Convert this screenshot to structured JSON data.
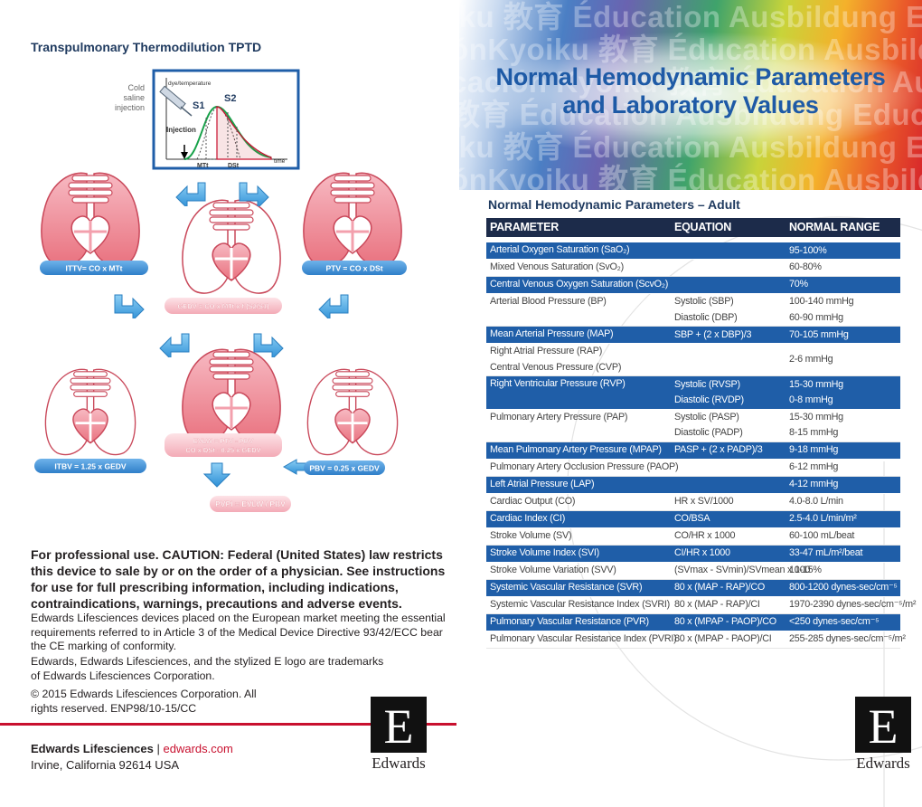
{
  "left": {
    "title": "Transpulmonary Thermodilution TPTD",
    "diagram": {
      "injection_label": [
        "Cold",
        "saline",
        "injection"
      ],
      "y_label": "dye/temperature",
      "s1": "S1",
      "s2": "S2",
      "injection": "Injection",
      "mtt": "MTt",
      "dst": "DSt",
      "time": "time"
    },
    "formulas": {
      "ittv": "ITTV= CO x MTt",
      "ptv": "PTV = CO x DSt",
      "gedv": "GEDV = CO x MTt x f (S2/S1)",
      "evlw": [
        "EVLW = PTV - PBV",
        "CO x DSt - 0.25 x GEDV"
      ],
      "itbv": "ITBV = 1.25 x GEDV",
      "pbv": "PBV = 0.25 x GEDV",
      "pvpi": "PVPI = EVLW / PBV"
    },
    "caution": "For professional use. CAUTION: Federal (United States) law restricts this device to sale by or on the order of a physician. See instructions for use for full prescribing information, including indications, contraindications, warnings, precautions and adverse events.",
    "paragraphs": [
      "Edwards Lifesciences devices placed on the European market meeting the essential requirements referred to in Article 3 of the Medical Device Directive 93/42/ECC bear the CE marking of conformity.",
      "Edwards, Edwards Lifesciences, and the stylized E logo are trademarks of Edwards Lifesciences Corporation.",
      "© 2015 Edwards Lifesciences Corporation. All rights reserved. ENP98/10-15/CC"
    ],
    "footer": {
      "company": "Edwards Lifesciences",
      "separator": "|",
      "url": "edwards.com",
      "address": "Irvine, California 92614 USA"
    },
    "logo": "Edwards"
  },
  "right": {
    "header": {
      "watermark": [
        "iku 教育 Éducation Ausbildung Educació",
        "ónKyoiku 教育 Éducation Ausbildung E",
        "cación Kyoiku 教育 Éducation Ausbildu",
        "教育 Éducation Ausbildung Educación K",
        "iku 教育 Éducation Ausbildung Educació",
        "ónKyoiku 教育 Éducation Ausbildung E"
      ],
      "title": [
        "Normal Hemodynamic Parameters",
        "and Laboratory Values"
      ]
    },
    "table": {
      "title": "Normal Hemodynamic Parameters – Adult",
      "columns": [
        "PARAMETER",
        "EQUATION",
        "NORMAL RANGE"
      ],
      "rows": [
        {
          "blue": true,
          "parameter": [
            "Arterial Oxygen Saturation (SaO₂)"
          ],
          "equation": [],
          "range": [
            "95-100%"
          ]
        },
        {
          "blue": false,
          "parameter": [
            "Mixed Venous Saturation (SvO₂)"
          ],
          "equation": [],
          "range": [
            "60-80%"
          ]
        },
        {
          "blue": true,
          "parameter": [
            "Central Venous Oxygen Saturation (ScvO₂)"
          ],
          "equation": [],
          "range": [
            "70%"
          ]
        },
        {
          "blue": false,
          "parameter": [
            "Arterial Blood Pressure (BP)"
          ],
          "equation": [
            "Systolic (SBP)",
            "Diastolic (DBP)"
          ],
          "range": [
            "100-140 mmHg",
            "60-90 mmHg"
          ]
        },
        {
          "blue": true,
          "parameter": [
            "Mean Arterial Pressure (MAP)"
          ],
          "equation": [
            "SBP + (2 x DBP)/3"
          ],
          "range": [
            "70-105 mmHg"
          ]
        },
        {
          "blue": false,
          "parameter": [
            "Right Atrial Pressure (RAP)",
            "Central Venous Pressure (CVP)"
          ],
          "equation": [],
          "range": [
            "2-6 mmHg"
          ]
        },
        {
          "blue": true,
          "parameter": [
            "Right Ventricular Pressure (RVP)"
          ],
          "equation": [
            "Systolic (RVSP)",
            "Diastolic (RVDP)"
          ],
          "range": [
            "15-30 mmHg",
            "0-8 mmHg"
          ]
        },
        {
          "blue": false,
          "parameter": [
            "Pulmonary Artery Pressure (PAP)"
          ],
          "equation": [
            "Systolic (PASP)",
            "Diastolic (PADP)"
          ],
          "range": [
            "15-30 mmHg",
            "8-15 mmHg"
          ]
        },
        {
          "blue": true,
          "parameter": [
            "Mean Pulmonary Artery Pressure (MPAP)"
          ],
          "equation": [
            "PASP + (2 x PADP)/3"
          ],
          "range": [
            "9-18 mmHg"
          ]
        },
        {
          "blue": false,
          "parameter": [
            "Pulmonary Artery Occlusion Pressure (PAOP)"
          ],
          "equation": [],
          "range": [
            "6-12 mmHg"
          ]
        },
        {
          "blue": true,
          "parameter": [
            "Left Atrial Pressure (LAP)"
          ],
          "equation": [],
          "range": [
            "4-12 mmHg"
          ]
        },
        {
          "blue": false,
          "parameter": [
            "Cardiac Output (CO)"
          ],
          "equation": [
            "HR x SV/1000"
          ],
          "range": [
            "4.0-8.0 L/min"
          ]
        },
        {
          "blue": true,
          "parameter": [
            "Cardiac Index (CI)"
          ],
          "equation": [
            "CO/BSA"
          ],
          "range": [
            "2.5-4.0 L/min/m²"
          ]
        },
        {
          "blue": false,
          "parameter": [
            "Stroke Volume (SV)"
          ],
          "equation": [
            "CO/HR x 1000"
          ],
          "range": [
            "60-100 mL/beat"
          ]
        },
        {
          "blue": true,
          "parameter": [
            "Stroke Volume Index (SVI)"
          ],
          "equation": [
            "CI/HR x 1000"
          ],
          "range": [
            "33-47 mL/m²/beat"
          ]
        },
        {
          "blue": false,
          "parameter": [
            "Stroke Volume Variation (SVV)"
          ],
          "equation": [
            "(SVmax - SVmin)/SVmean x 100"
          ],
          "range": [
            "10-15%"
          ]
        },
        {
          "blue": true,
          "parameter": [
            "Systemic Vascular Resistance (SVR)"
          ],
          "equation": [
            "80 x (MAP - RAP)/CO"
          ],
          "range": [
            "800-1200 dynes-sec/cm⁻⁵"
          ]
        },
        {
          "blue": false,
          "parameter": [
            "Systemic Vascular Resistance Index (SVRI)"
          ],
          "equation": [
            "80 x (MAP - RAP)/CI"
          ],
          "range": [
            "1970-2390 dynes-sec/cm⁻⁵/m²"
          ]
        },
        {
          "blue": true,
          "parameter": [
            "Pulmonary Vascular Resistance (PVR)"
          ],
          "equation": [
            "80 x (MPAP - PAOP)/CO"
          ],
          "range": [
            "<250 dynes-sec/cm⁻⁵"
          ]
        },
        {
          "blue": false,
          "parameter": [
            "Pulmonary Vascular Resistance Index (PVRI)"
          ],
          "equation": [
            "80 x (MPAP - PAOP)/CI"
          ],
          "range": [
            "255-285 dynes-sec/cm⁻⁵/m²"
          ]
        }
      ]
    },
    "logo": "Edwards"
  }
}
